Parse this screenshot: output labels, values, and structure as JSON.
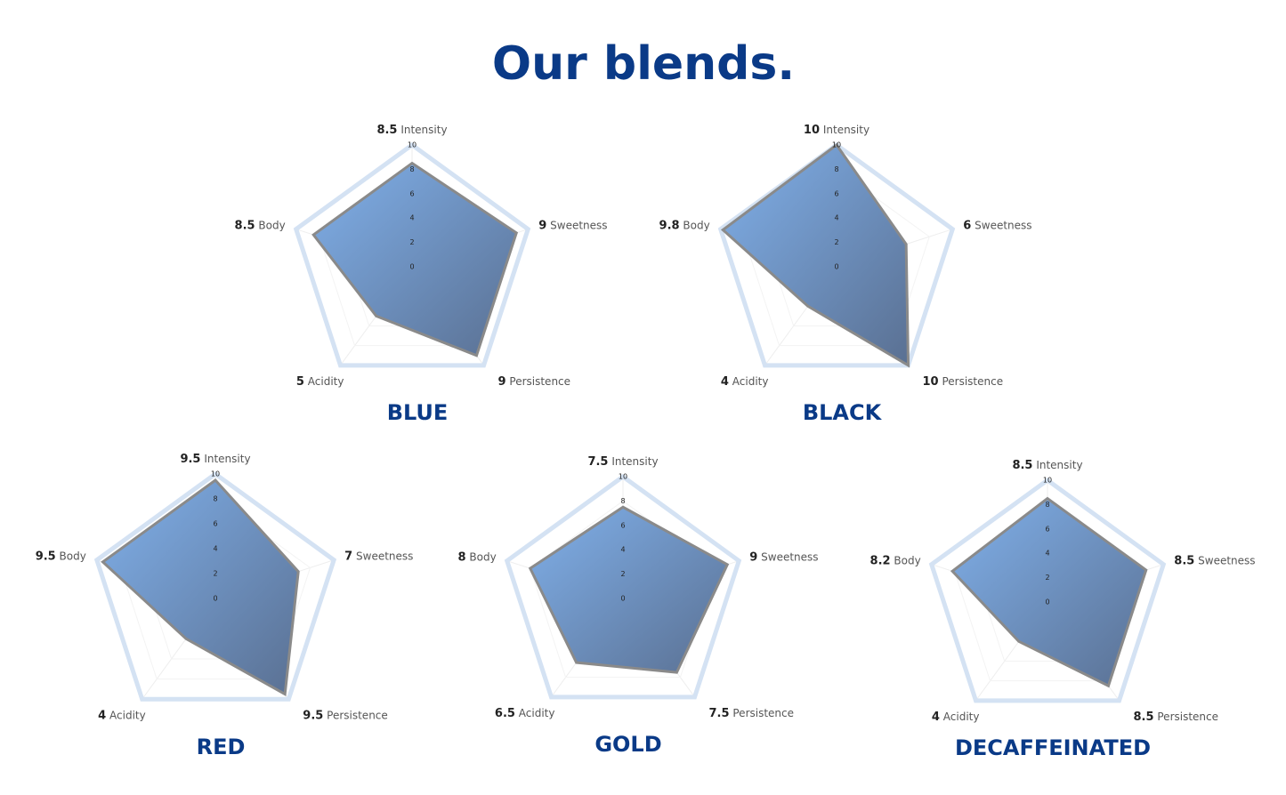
{
  "title": "Our blends.",
  "chart_data": [
    {
      "type": "radar",
      "title": "BLUE",
      "categories": [
        "Intensity",
        "Sweetness",
        "Persistence",
        "Acidity",
        "Body"
      ],
      "values": [
        8.5,
        9,
        9,
        5,
        8.5
      ],
      "rlim": [
        0,
        10
      ],
      "rticks": [
        0,
        2,
        4,
        6,
        8,
        10
      ]
    },
    {
      "type": "radar",
      "title": "BLACK",
      "categories": [
        "Intensity",
        "Sweetness",
        "Persistence",
        "Acidity",
        "Body"
      ],
      "values": [
        10,
        6,
        10,
        4,
        9.8
      ],
      "rlim": [
        0,
        10
      ],
      "rticks": [
        0,
        2,
        4,
        6,
        8,
        10
      ]
    },
    {
      "type": "radar",
      "title": "RED",
      "categories": [
        "Intensity",
        "Sweetness",
        "Persistence",
        "Acidity",
        "Body"
      ],
      "values": [
        9.5,
        7,
        9.5,
        4,
        9.5
      ],
      "rlim": [
        0,
        10
      ],
      "rticks": [
        0,
        2,
        4,
        6,
        8,
        10
      ]
    },
    {
      "type": "radar",
      "title": "GOLD",
      "categories": [
        "Intensity",
        "Sweetness",
        "Persistence",
        "Acidity",
        "Body"
      ],
      "values": [
        7.5,
        9,
        7.5,
        6.5,
        8
      ],
      "rlim": [
        0,
        10
      ],
      "rticks": [
        0,
        2,
        4,
        6,
        8,
        10
      ]
    },
    {
      "type": "radar",
      "title": "DECAFFEINATED",
      "categories": [
        "Intensity",
        "Sweetness",
        "Persistence",
        "Acidity",
        "Body"
      ],
      "values": [
        8.5,
        8.5,
        8.5,
        4,
        8.2
      ],
      "rlim": [
        0,
        10
      ],
      "rticks": [
        0,
        2,
        4,
        6,
        8,
        10
      ]
    }
  ]
}
